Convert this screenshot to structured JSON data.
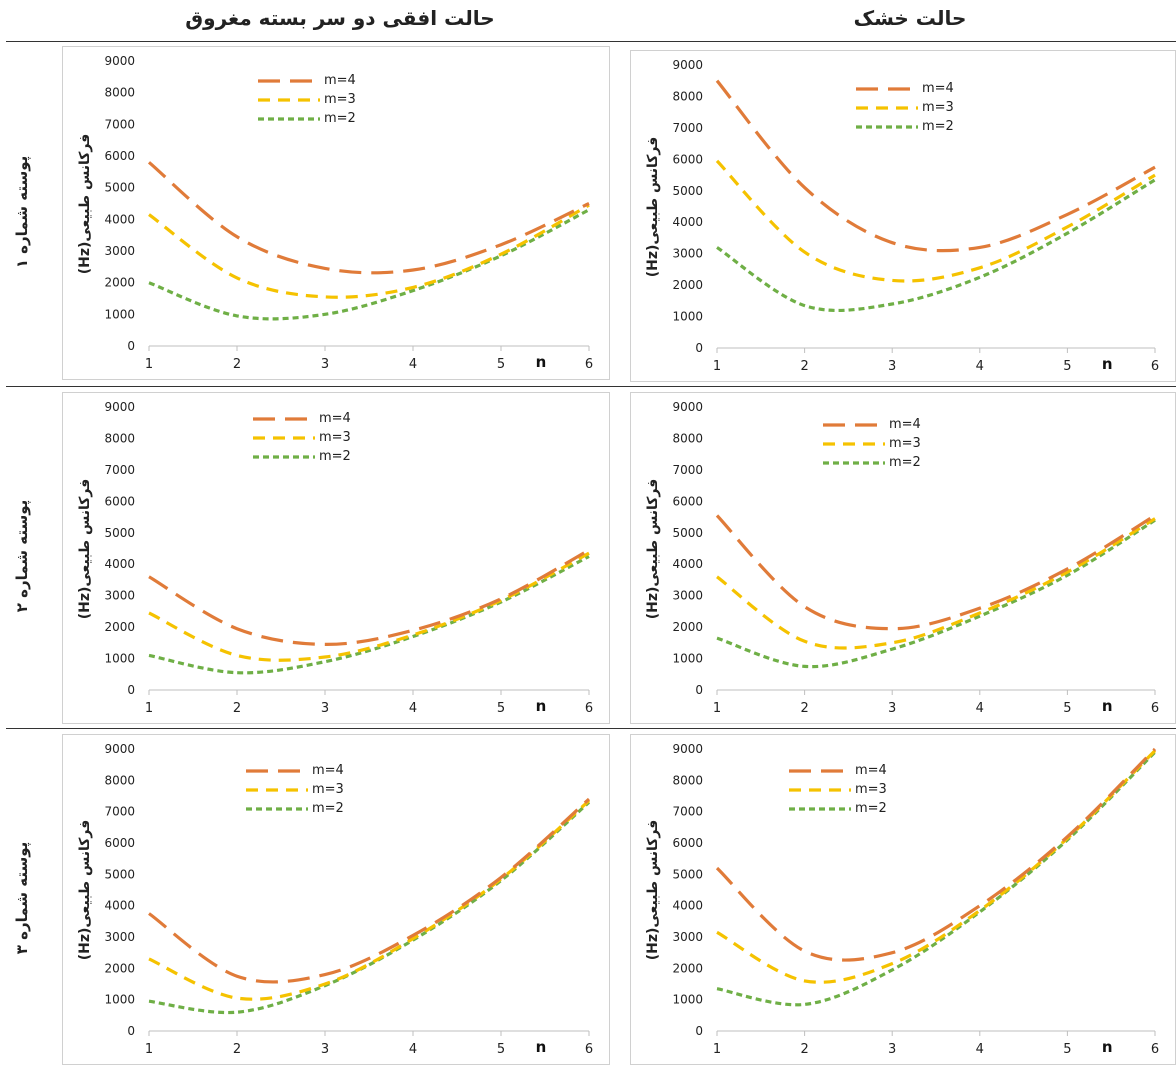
{
  "col_headers": {
    "left": "حالت افقی دو سر بسته مغروق",
    "right": "حالت خشک"
  },
  "row_labels": [
    "پوسته شماره ۱",
    "پوسته شماره ۲",
    "پوسته شماره ۳"
  ],
  "colors": {
    "m4": "#E07B39",
    "m3": "#F5C200",
    "m2": "#6FAF46"
  },
  "chart_data": [
    {
      "type": "line",
      "row": 1,
      "column": "left",
      "x": [
        1,
        2,
        3,
        4,
        5,
        6
      ],
      "xlabel": "n",
      "ylabel": "فرکانس طبیعی(Hz)",
      "ylim": [
        0,
        9000
      ],
      "yticks": [
        0,
        1000,
        2000,
        3000,
        4000,
        5000,
        6000,
        7000,
        8000,
        9000
      ],
      "series": [
        {
          "name": "m=4",
          "values": [
            5800,
            3450,
            2450,
            2400,
            3200,
            4500
          ]
        },
        {
          "name": "m=3",
          "values": [
            4150,
            2150,
            1550,
            1850,
            2900,
            4450
          ]
        },
        {
          "name": "m=2",
          "values": [
            2000,
            950,
            1000,
            1750,
            2850,
            4300
          ]
        }
      ]
    },
    {
      "type": "line",
      "row": 1,
      "column": "right",
      "x": [
        1,
        2,
        3,
        4,
        5,
        6
      ],
      "xlabel": "n",
      "ylabel": "فرکانس طبیعی(Hz)",
      "ylim": [
        0,
        9000
      ],
      "yticks": [
        0,
        1000,
        2000,
        3000,
        4000,
        5000,
        6000,
        7000,
        8000,
        9000
      ],
      "series": [
        {
          "name": "m=4",
          "values": [
            8500,
            5100,
            3350,
            3200,
            4250,
            5750
          ]
        },
        {
          "name": "m=3",
          "values": [
            5950,
            3050,
            2150,
            2550,
            3850,
            5500
          ]
        },
        {
          "name": "m=2",
          "values": [
            3200,
            1350,
            1400,
            2250,
            3650,
            5350
          ]
        }
      ]
    },
    {
      "type": "line",
      "row": 2,
      "column": "left",
      "x": [
        1,
        2,
        3,
        4,
        5,
        6
      ],
      "xlabel": "n",
      "ylabel": "فرکانس طبیعی(Hz)",
      "ylim": [
        0,
        9000
      ],
      "yticks": [
        0,
        1000,
        2000,
        3000,
        4000,
        5000,
        6000,
        7000,
        8000,
        9000
      ],
      "series": [
        {
          "name": "m=4",
          "values": [
            3600,
            1950,
            1450,
            1900,
            2900,
            4450
          ]
        },
        {
          "name": "m=3",
          "values": [
            2450,
            1100,
            1050,
            1750,
            2850,
            4350
          ]
        },
        {
          "name": "m=2",
          "values": [
            1100,
            550,
            900,
            1700,
            2800,
            4250
          ]
        }
      ]
    },
    {
      "type": "line",
      "row": 2,
      "column": "right",
      "x": [
        1,
        2,
        3,
        4,
        5,
        6
      ],
      "xlabel": "n",
      "ylabel": "فرکانس طبیعی(Hz)",
      "ylim": [
        0,
        9000
      ],
      "yticks": [
        0,
        1000,
        2000,
        3000,
        4000,
        5000,
        6000,
        7000,
        8000,
        9000
      ],
      "series": [
        {
          "name": "m=4",
          "values": [
            5550,
            2650,
            1950,
            2600,
            3850,
            5550
          ]
        },
        {
          "name": "m=3",
          "values": [
            3600,
            1550,
            1500,
            2450,
            3750,
            5450
          ]
        },
        {
          "name": "m=2",
          "values": [
            1650,
            750,
            1300,
            2350,
            3650,
            5400
          ]
        }
      ]
    },
    {
      "type": "line",
      "row": 3,
      "column": "left",
      "x": [
        1,
        2,
        3,
        4,
        5,
        6
      ],
      "xlabel": "n",
      "ylabel": "فرکانس طبیعی(Hz)",
      "ylim": [
        0,
        9000
      ],
      "yticks": [
        0,
        1000,
        2000,
        3000,
        4000,
        5000,
        6000,
        7000,
        8000,
        9000
      ],
      "series": [
        {
          "name": "m=4",
          "values": [
            3750,
            1750,
            1800,
            3050,
            4900,
            7400
          ]
        },
        {
          "name": "m=3",
          "values": [
            2300,
            1050,
            1500,
            2950,
            4850,
            7350
          ]
        },
        {
          "name": "m=2",
          "values": [
            950,
            600,
            1450,
            2900,
            4800,
            7300
          ]
        }
      ]
    },
    {
      "type": "line",
      "row": 3,
      "column": "right",
      "x": [
        1,
        2,
        3,
        4,
        5,
        6
      ],
      "xlabel": "n",
      "ylabel": "فرکانس طبیعی(Hz)",
      "ylim": [
        0,
        9000
      ],
      "yticks": [
        0,
        1000,
        2000,
        3000,
        4000,
        5000,
        6000,
        7000,
        8000,
        9000
      ],
      "series": [
        {
          "name": "m=4",
          "values": [
            5200,
            2550,
            2500,
            4000,
            6200,
            9000
          ]
        },
        {
          "name": "m=3",
          "values": [
            3150,
            1600,
            2150,
            3850,
            6150,
            8950
          ]
        },
        {
          "name": "m=2",
          "values": [
            1350,
            850,
            1950,
            3800,
            6100,
            8900
          ]
        }
      ]
    }
  ]
}
